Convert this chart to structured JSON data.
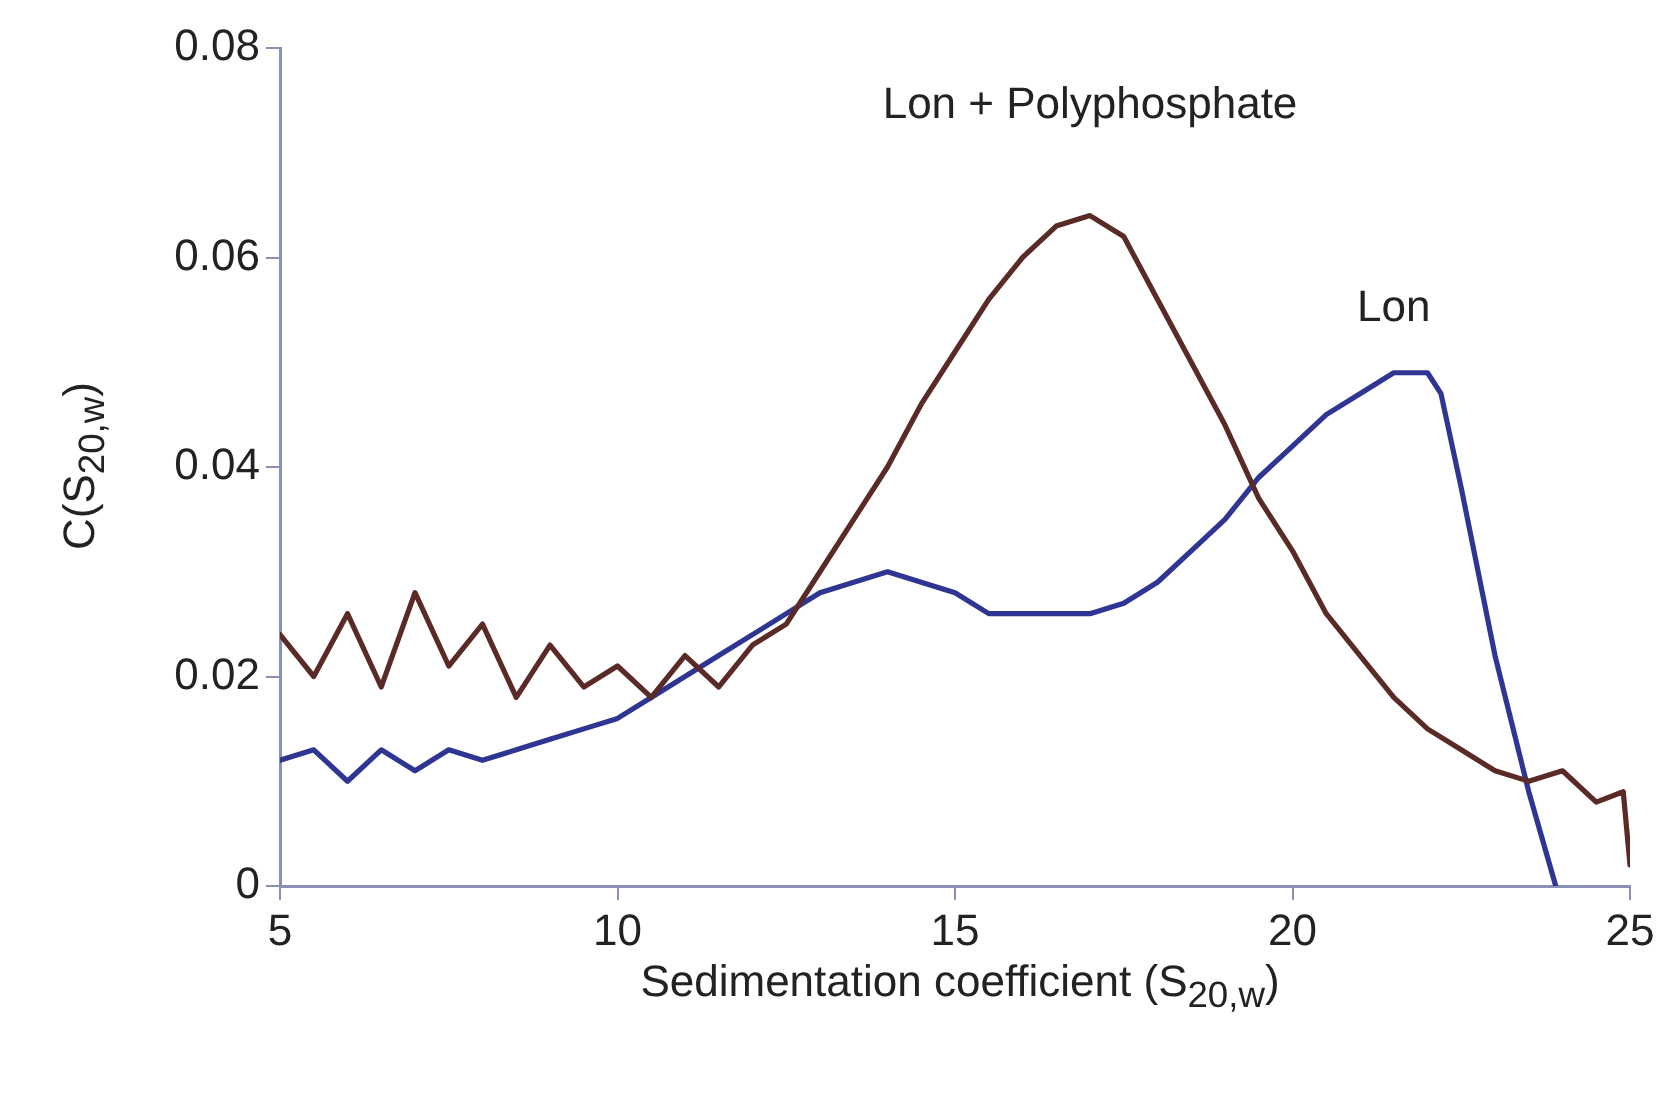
{
  "chart_data": {
    "type": "line",
    "xlabel": "Sedimentation coefficient (S$_{20,w}$)",
    "ylabel": "C(S$_{20,w}$)",
    "xlim": [
      5,
      25
    ],
    "xticks": [
      5,
      10,
      15,
      20,
      25
    ],
    "ylim": [
      0,
      0.08
    ],
    "yticks": [
      0,
      0.02,
      0.04,
      0.06,
      0.08
    ],
    "grid": false,
    "legend": false,
    "marker": "none",
    "line_style": "solid",
    "series": [
      {
        "name": "Lon + Polyphosphate",
        "color": "#5a2a26",
        "x": [
          5,
          5.5,
          6,
          6.5,
          7,
          7.5,
          8,
          8.5,
          9,
          9.5,
          10,
          10.5,
          11,
          11.5,
          12,
          12.5,
          13,
          13.5,
          14,
          14.5,
          15,
          15.5,
          16,
          16.5,
          17,
          17.5,
          18,
          18.5,
          19,
          19.5,
          20,
          20.5,
          21,
          21.5,
          22,
          22.5,
          23,
          23.5,
          24,
          24.5,
          24.9,
          25
        ],
        "values": [
          0.024,
          0.02,
          0.026,
          0.019,
          0.028,
          0.021,
          0.025,
          0.018,
          0.023,
          0.019,
          0.021,
          0.018,
          0.022,
          0.019,
          0.023,
          0.025,
          0.03,
          0.035,
          0.04,
          0.046,
          0.051,
          0.056,
          0.06,
          0.063,
          0.064,
          0.062,
          0.056,
          0.05,
          0.044,
          0.037,
          0.032,
          0.026,
          0.022,
          0.018,
          0.015,
          0.013,
          0.011,
          0.01,
          0.011,
          0.008,
          0.009,
          0.002
        ]
      },
      {
        "name": "Lon",
        "color": "#2e3592",
        "x": [
          5,
          5.5,
          6,
          6.5,
          7,
          7.5,
          8,
          8.5,
          9,
          9.5,
          10,
          10.5,
          11,
          11.5,
          12,
          12.5,
          13,
          13.5,
          14,
          14.5,
          15,
          15.5,
          16,
          16.5,
          17,
          17.5,
          18,
          18.5,
          19,
          19.5,
          20,
          20.5,
          21,
          21.5,
          22,
          22.2,
          22.5,
          23,
          23.5,
          23.9
        ],
        "values": [
          0.012,
          0.013,
          0.01,
          0.013,
          0.011,
          0.013,
          0.012,
          0.013,
          0.014,
          0.015,
          0.016,
          0.018,
          0.02,
          0.022,
          0.024,
          0.026,
          0.028,
          0.029,
          0.03,
          0.029,
          0.028,
          0.026,
          0.026,
          0.026,
          0.026,
          0.027,
          0.029,
          0.032,
          0.035,
          0.039,
          0.042,
          0.045,
          0.047,
          0.049,
          0.049,
          0.047,
          0.038,
          0.022,
          0.009,
          0
        ]
      }
    ]
  }
}
